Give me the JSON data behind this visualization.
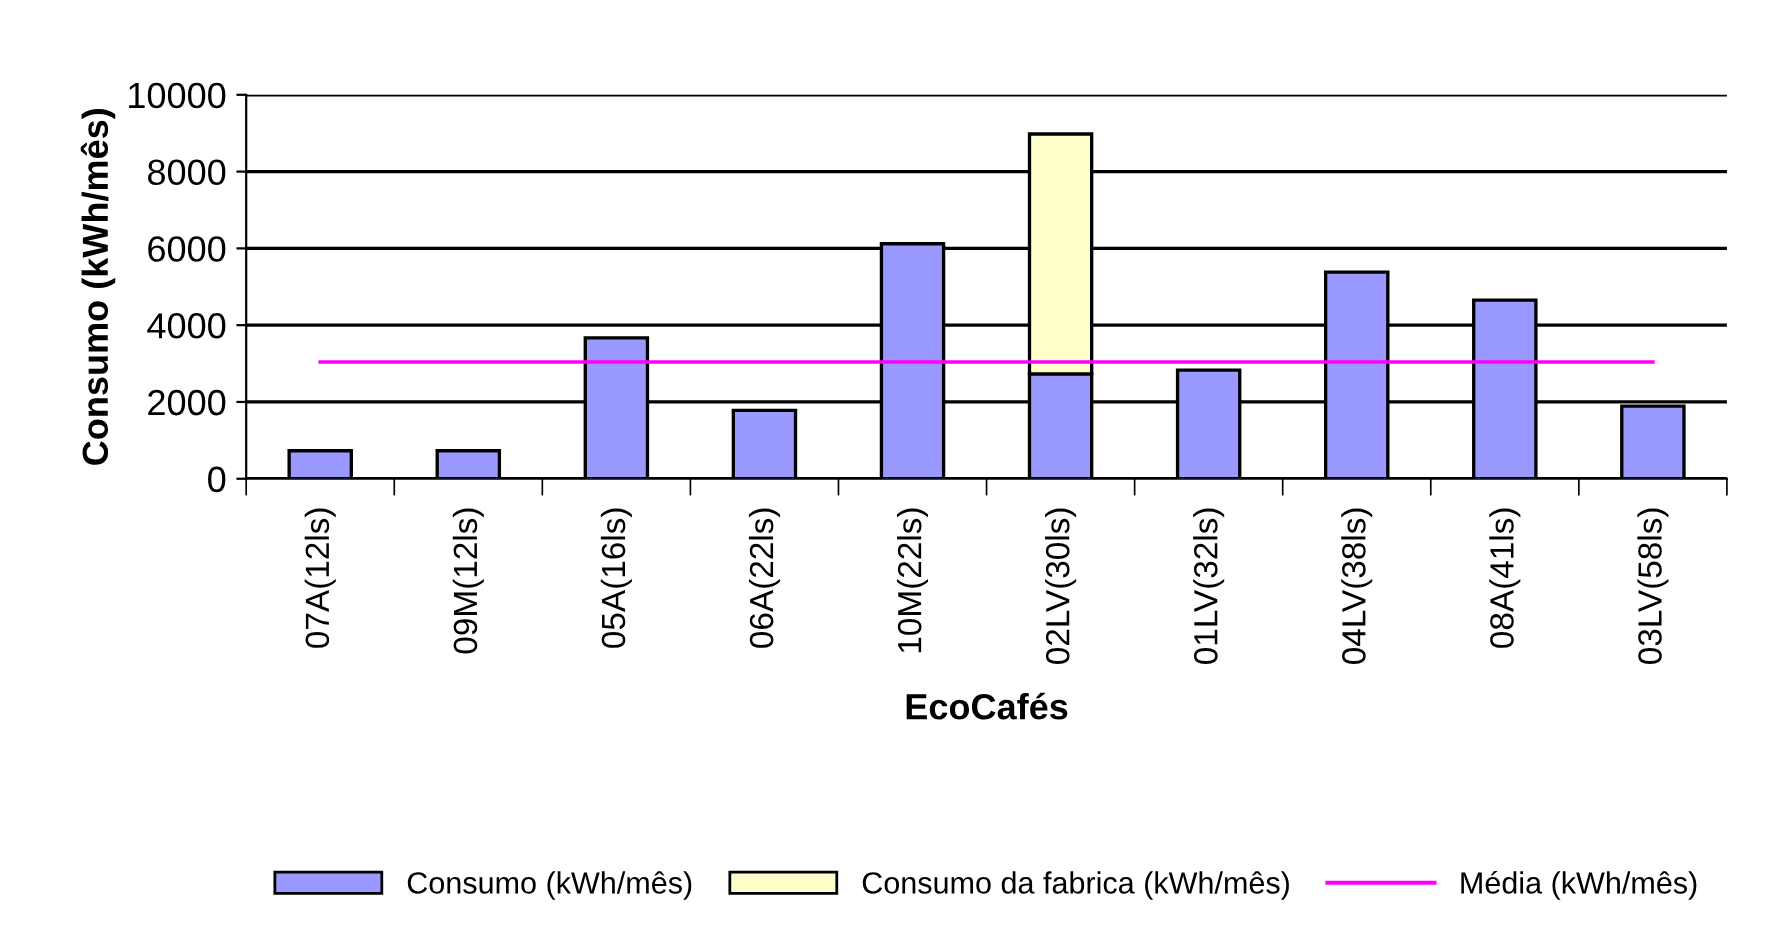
{
  "chart_data": {
    "type": "bar",
    "stacked": true,
    "xlabel": "EcoCafés",
    "ylabel": "Consumo (kWh/mês)",
    "categories": [
      "07A(12ls)",
      "09M(12ls)",
      "05A(16ls)",
      "06A(22ls)",
      "10M(22ls)",
      "02LV(30ls)",
      "01LV(32ls)",
      "04LV(38ls)",
      "08A(41ls)",
      "03LV(58ls)"
    ],
    "series": [
      {
        "name": "Consumo (kWh/mês)",
        "color": "#9999ff",
        "values": [
          730,
          730,
          3670,
          1780,
          6120,
          2730,
          2830,
          5380,
          4650,
          1890
        ]
      },
      {
        "name": "Consumo da fabrica (kWh/mês)",
        "color": "#ffffcc",
        "values": [
          null,
          null,
          null,
          null,
          null,
          6250,
          null,
          null,
          null,
          null
        ]
      },
      {
        "name": "Média (kWh/mês)",
        "type": "line",
        "color": "#ff00ff",
        "values": [
          3040,
          3040,
          3040,
          3040,
          3040,
          3040,
          3040,
          3040,
          3040,
          3040
        ]
      }
    ],
    "ylim": [
      0,
      10000
    ],
    "yticks": [
      0,
      2000,
      4000,
      6000,
      8000,
      10000
    ],
    "grid": "y",
    "legend": "bottom",
    "marker": "none",
    "line_style": "solid"
  }
}
